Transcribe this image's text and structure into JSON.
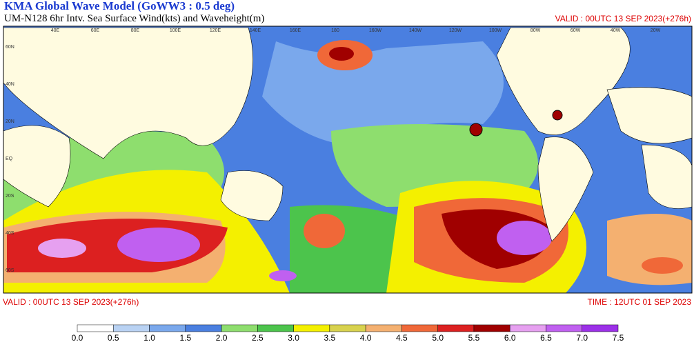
{
  "header": {
    "title": "KMA  Global Wave Model (GoWW3 : 0.5 deg)",
    "subtitle": "UM-N128  6hr Intv. Sea Surface Wind(kts) and Waveheight(m)",
    "valid_top": "VALID : 00UTC 13 SEP 2023(+276h)"
  },
  "footer": {
    "valid": "VALID : 00UTC 13 SEP 2023(+276h)",
    "time": "TIME : 12UTC 01 SEP 2023"
  },
  "map": {
    "lon_labels": [
      "40E",
      "60E",
      "80E",
      "100E",
      "120E",
      "140E",
      "160E",
      "180",
      "160W",
      "140W",
      "120W",
      "100W",
      "80W",
      "60W",
      "40W",
      "20W"
    ],
    "lat_labels": [
      "60N",
      "40N",
      "20N",
      "EQ",
      "20S",
      "40S",
      "60S"
    ]
  },
  "colorbar": {
    "labels": [
      "0.0",
      "0.5",
      "1.0",
      "1.5",
      "2.0",
      "2.5",
      "3.0",
      "3.5",
      "4.0",
      "4.5",
      "5.0",
      "5.5",
      "6.0",
      "6.5",
      "7.0",
      "7.5"
    ],
    "colors": [
      "#ffffff",
      "#b9d2f3",
      "#7aa8ec",
      "#4a7fe0",
      "#8ede6e",
      "#4cc44c",
      "#f4f000",
      "#d8d24e",
      "#f4b070",
      "#f06838",
      "#dc2020",
      "#a00000",
      "#e6a0f0",
      "#c060f0",
      "#9c30e8"
    ]
  }
}
